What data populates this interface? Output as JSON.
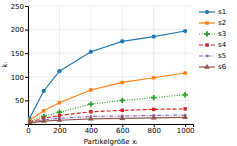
{
  "chart_data": {
    "type": "line",
    "xlabel": "Partikelgröße xᵢ",
    "ylabel": "kᵢ",
    "x": [
      10,
      100,
      200,
      400,
      600,
      800,
      1000
    ],
    "series": [
      {
        "name": "s1",
        "values": [
          12,
          70,
          112,
          153,
          175,
          185,
          197
        ],
        "marker": "circle",
        "line_style": "solid"
      },
      {
        "name": "s2",
        "values": [
          8,
          28,
          45,
          72,
          88,
          98,
          108
        ],
        "marker": "square",
        "line_style": "solid"
      },
      {
        "name": "s3",
        "values": [
          5,
          16,
          25,
          42,
          50,
          56,
          62
        ],
        "marker": "plus",
        "line_style": "dotted"
      },
      {
        "name": "s4",
        "values": [
          4,
          12,
          18,
          26,
          29,
          31,
          32
        ],
        "marker": "square",
        "line_style": "dashed"
      },
      {
        "name": "s5",
        "values": [
          3,
          9,
          12,
          16,
          17,
          18,
          19
        ],
        "marker": "point",
        "line_style": "dashdot"
      },
      {
        "name": "s6",
        "values": [
          2,
          6,
          8,
          11,
          12,
          13,
          14
        ],
        "marker": "triangle",
        "line_style": "solid"
      }
    ],
    "xlim": [
      0,
      1050
    ],
    "ylim": [
      0,
      250
    ],
    "xticks": [
      0,
      200,
      400,
      600,
      800,
      1000
    ],
    "yticks": [
      50,
      100,
      150,
      200,
      250
    ],
    "grid": true,
    "legend": "right"
  }
}
